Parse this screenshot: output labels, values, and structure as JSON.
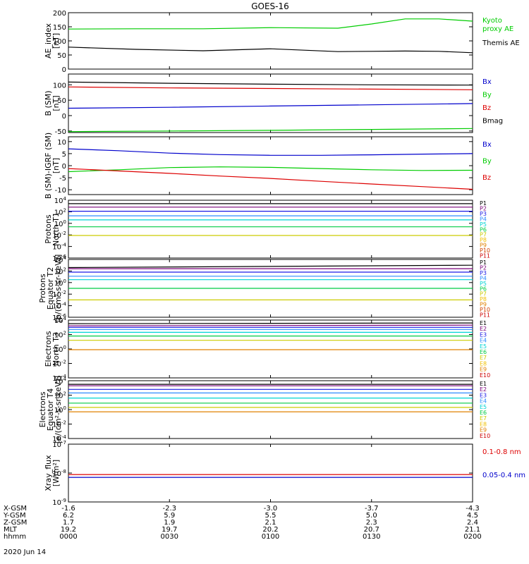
{
  "title": "GOES-16",
  "date": "2020 Jun 14",
  "colors": {
    "black": "#000000",
    "blue": "#0000cc",
    "green": "#00cc00",
    "red": "#dd0000",
    "P": [
      "#000000",
      "#7a007a",
      "#1a1ae6",
      "#2e8cff",
      "#00d4d4",
      "#00cc44",
      "#cccc00",
      "#f0c000",
      "#e08000",
      "#d04000",
      "#cc0000"
    ],
    "E": [
      "#000000",
      "#7a007a",
      "#1a1ae6",
      "#2e8cff",
      "#00d4d4",
      "#00cc44",
      "#cccc00",
      "#f0c000",
      "#e08000",
      "#cc0000"
    ]
  },
  "x_ticks": [
    "0000",
    "0030",
    "0100",
    "0130",
    "0200"
  ],
  "orbit_table": {
    "rows": [
      {
        "label": "X-GSM",
        "values": [
          "-1.6",
          "-2.3",
          "-3.0",
          "-3.7",
          "-4.3"
        ]
      },
      {
        "label": "Y-GSM",
        "values": [
          "6.2",
          "5.9",
          "5.5",
          "5.0",
          "4.5"
        ]
      },
      {
        "label": "Z-GSM",
        "values": [
          "1.7",
          "1.9",
          "2.1",
          "2.3",
          "2.4"
        ]
      },
      {
        "label": "MLT",
        "values": [
          "19.2",
          "19.7",
          "20.2",
          "20.7",
          "21.1"
        ]
      },
      {
        "label": "hhmm",
        "values": [
          "0000",
          "0030",
          "0100",
          "0130",
          "0200"
        ]
      }
    ]
  },
  "chart_data": [
    {
      "type": "line",
      "ylabel": [
        "AE_index",
        "[nT]"
      ],
      "ylim": [
        0,
        200
      ],
      "yscale": "linear",
      "yticks": [
        {
          "v": 0,
          "t": "0"
        },
        {
          "v": 50,
          "t": "50"
        },
        {
          "v": 100,
          "t": "100"
        },
        {
          "v": 150,
          "t": "150"
        },
        {
          "v": 200,
          "t": "200"
        }
      ],
      "x": [
        0,
        20,
        40,
        60,
        80,
        90,
        100,
        110,
        120
      ],
      "series": [
        {
          "name": "Kyoto\nproxy AE",
          "color": "green",
          "values": [
            142,
            143,
            143,
            147,
            145,
            160,
            178,
            178,
            170
          ]
        },
        {
          "name": "Themis AE",
          "color": "black",
          "values": [
            78,
            70,
            65,
            72,
            62,
            63,
            64,
            63,
            58
          ]
        }
      ]
    },
    {
      "type": "line",
      "ylabel": [
        "B (SM)",
        "[nT]"
      ],
      "ylim": [
        -55,
        135
      ],
      "yscale": "linear",
      "yticks": [
        {
          "v": -50,
          "t": "-50"
        },
        {
          "v": 0,
          "t": "0"
        },
        {
          "v": 50,
          "t": "50"
        },
        {
          "v": 100,
          "t": "100"
        }
      ],
      "x": [
        0,
        30,
        60,
        90,
        120
      ],
      "series": [
        {
          "name": "Bx",
          "color": "blue",
          "values": [
            24,
            27,
            31,
            35,
            39
          ]
        },
        {
          "name": "By",
          "color": "green",
          "values": [
            -52,
            -50,
            -48,
            -45,
            -42
          ]
        },
        {
          "name": "Bz",
          "color": "red",
          "values": [
            93,
            90,
            88,
            86,
            84
          ]
        },
        {
          "name": "Bmag",
          "color": "black",
          "values": [
            109,
            105,
            102,
            100,
            99
          ]
        }
      ]
    },
    {
      "type": "line",
      "ylabel": [
        "B (SM)-IGRF (SM)",
        "[nT]"
      ],
      "ylim": [
        -12,
        12
      ],
      "yscale": "linear",
      "yticks": [
        {
          "v": -10,
          "t": "-10"
        },
        {
          "v": -5,
          "t": "-5"
        },
        {
          "v": 0,
          "t": "0"
        },
        {
          "v": 5,
          "t": "5"
        },
        {
          "v": 10,
          "t": "10"
        }
      ],
      "x": [
        0,
        15,
        30,
        45,
        60,
        75,
        90,
        105,
        120
      ],
      "series": [
        {
          "name": "Bx",
          "color": "blue",
          "values": [
            7,
            6.2,
            5.2,
            4.6,
            4.3,
            4.3,
            4.5,
            4.8,
            5.0
          ]
        },
        {
          "name": "By",
          "color": "green",
          "values": [
            -2.5,
            -1.7,
            -0.8,
            -0.5,
            -0.7,
            -1.2,
            -1.7,
            -2.0,
            -1.9
          ]
        },
        {
          "name": "Bz",
          "color": "red",
          "values": [
            -1.2,
            -2.2,
            -3.2,
            -4.3,
            -5.3,
            -6.5,
            -7.6,
            -8.7,
            -9.8
          ]
        }
      ]
    },
    {
      "type": "line",
      "ylabel": [
        "Protons",
        "North T1"
      ],
      "ylim": [
        -6,
        4
      ],
      "yscale": "log",
      "yticks": [
        {
          "v": 4,
          "t": "10^4"
        },
        {
          "v": 2,
          "t": "10^2"
        },
        {
          "v": 0,
          "t": "10^0"
        },
        {
          "v": -2,
          "t": "10^-2"
        },
        {
          "v": -4,
          "t": "10^-4"
        },
        {
          "v": -6,
          "t": "10^-6"
        }
      ],
      "x": [
        0,
        120
      ],
      "series": [
        {
          "name": "P1",
          "ci": 0,
          "values": [
            3.4,
            3.4
          ]
        },
        {
          "name": "P2",
          "ci": 1,
          "values": [
            2.8,
            2.8
          ]
        },
        {
          "name": "P3",
          "ci": 2,
          "values": [
            2.1,
            2.1
          ]
        },
        {
          "name": "P4",
          "ci": 3,
          "values": [
            1.3,
            1.3
          ]
        },
        {
          "name": "P5",
          "ci": 4,
          "values": [
            0.6,
            0.6
          ]
        },
        {
          "name": "P6",
          "ci": 5,
          "values": [
            -0.6,
            -0.6
          ]
        },
        {
          "name": "P7",
          "ci": 6,
          "values": [
            -2.1,
            -2.1
          ]
        }
      ],
      "labels": [
        "P1",
        "P2",
        "P3",
        "P4",
        "P5",
        "P6",
        "P7",
        "P8",
        "P9",
        "P10",
        "P11"
      ]
    },
    {
      "type": "line",
      "ylabel": [
        "Protons",
        "Equator T2",
        "[p/(cm²-s-sr-keV)]"
      ],
      "ylim": [
        -6,
        4
      ],
      "yscale": "log",
      "yticks": [
        {
          "v": 4,
          "t": "10^4"
        },
        {
          "v": 2,
          "t": "10^2"
        },
        {
          "v": 0,
          "t": "10^0"
        },
        {
          "v": -2,
          "t": "10^-2"
        },
        {
          "v": -4,
          "t": "10^-4"
        },
        {
          "v": -6,
          "t": "10^-6"
        }
      ],
      "x": [
        0,
        120
      ],
      "series": [
        {
          "name": "P1",
          "ci": 0,
          "values": [
            2.6,
            3.0
          ]
        },
        {
          "name": "P2",
          "ci": 1,
          "values": [
            2.4,
            2.4
          ]
        },
        {
          "name": "P3",
          "ci": 2,
          "values": [
            1.8,
            1.8
          ]
        },
        {
          "name": "P4",
          "ci": 3,
          "values": [
            1.1,
            1.1
          ]
        },
        {
          "name": "P5",
          "ci": 4,
          "values": [
            0.5,
            0.5
          ]
        },
        {
          "name": "P6",
          "ci": 5,
          "values": [
            -1.0,
            -1.0
          ]
        },
        {
          "name": "P7",
          "ci": 6,
          "values": [
            -3.0,
            -3.0
          ]
        }
      ],
      "labels": [
        "P1",
        "P2",
        "P3",
        "P4",
        "P5",
        "P6",
        "P7",
        "P8",
        "P9",
        "P10",
        "P11"
      ]
    },
    {
      "type": "line",
      "ylabel": [
        "Electrons",
        "North T3"
      ],
      "ylim": [
        -4,
        4
      ],
      "yscale": "log",
      "yticks": [
        {
          "v": 4,
          "t": "10^4"
        },
        {
          "v": 2,
          "t": "10^2"
        },
        {
          "v": 0,
          "t": "10^0"
        },
        {
          "v": -2,
          "t": "10^-2"
        },
        {
          "v": -4,
          "t": "10^-4"
        }
      ],
      "x": [
        0,
        120
      ],
      "series": [
        {
          "name": "E1",
          "ci": 0,
          "values": [
            3.5,
            3.6
          ]
        },
        {
          "name": "E2",
          "ci": 1,
          "values": [
            3.2,
            3.3
          ]
        },
        {
          "name": "E3",
          "ci": 2,
          "values": [
            3.0,
            3.0
          ]
        },
        {
          "name": "E4",
          "ci": 3,
          "values": [
            2.7,
            2.7
          ]
        },
        {
          "name": "E5",
          "ci": 4,
          "values": [
            2.3,
            2.3
          ]
        },
        {
          "name": "E6",
          "ci": 5,
          "values": [
            1.8,
            1.8
          ]
        },
        {
          "name": "E7",
          "ci": 6,
          "values": [
            1.2,
            1.2
          ]
        },
        {
          "name": "E8",
          "ci": 8,
          "values": [
            -0.1,
            -0.1
          ]
        }
      ],
      "labels": [
        "E1",
        "E2",
        "E3",
        "E4",
        "E5",
        "E6",
        "E7",
        "E8",
        "E9",
        "E10"
      ]
    },
    {
      "type": "line",
      "ylabel": [
        "Electrons",
        "Equator T4",
        "[e/(cm²-s-sr-keV)]"
      ],
      "ylim": [
        -4,
        4
      ],
      "yscale": "log",
      "yticks": [
        {
          "v": 4,
          "t": "10^4"
        },
        {
          "v": 2,
          "t": "10^2"
        },
        {
          "v": 0,
          "t": "10^0"
        },
        {
          "v": -2,
          "t": "10^-2"
        },
        {
          "v": -4,
          "t": "10^-4"
        }
      ],
      "x": [
        0,
        120
      ],
      "series": [
        {
          "name": "E1",
          "ci": 0,
          "values": [
            3.5,
            3.5
          ]
        },
        {
          "name": "E2",
          "ci": 1,
          "values": [
            3.3,
            3.3
          ]
        },
        {
          "name": "E3",
          "ci": 2,
          "values": [
            2.8,
            2.8
          ]
        },
        {
          "name": "E4",
          "ci": 3,
          "values": [
            2.3,
            2.3
          ]
        },
        {
          "name": "E5",
          "ci": 4,
          "values": [
            1.6,
            1.6
          ]
        },
        {
          "name": "E6",
          "ci": 5,
          "values": [
            0.9,
            0.9
          ]
        },
        {
          "name": "E7",
          "ci": 6,
          "values": [
            0.3,
            0.3
          ]
        },
        {
          "name": "E8",
          "ci": 8,
          "values": [
            -0.3,
            -0.3
          ]
        }
      ],
      "labels": [
        "E1",
        "E2",
        "E3",
        "E4",
        "E5",
        "E6",
        "E7",
        "E8",
        "E9",
        "E10"
      ]
    },
    {
      "type": "line",
      "ylabel": [
        "Xray_flux",
        "[W/m²]"
      ],
      "ylim": [
        -9,
        -7
      ],
      "yscale": "log",
      "yticks": [
        {
          "v": -7,
          "t": "10^-7"
        },
        {
          "v": -8,
          "t": "10^-8"
        },
        {
          "v": -9,
          "t": "10^-9"
        }
      ],
      "x": [
        0,
        120
      ],
      "series": [
        {
          "name": "0.1-0.8 nm",
          "color": "red",
          "values": [
            -8.05,
            -8.05
          ]
        },
        {
          "name": "0.05-0.4 nm",
          "color": "blue",
          "values": [
            -8.15,
            -8.15
          ]
        }
      ]
    }
  ]
}
